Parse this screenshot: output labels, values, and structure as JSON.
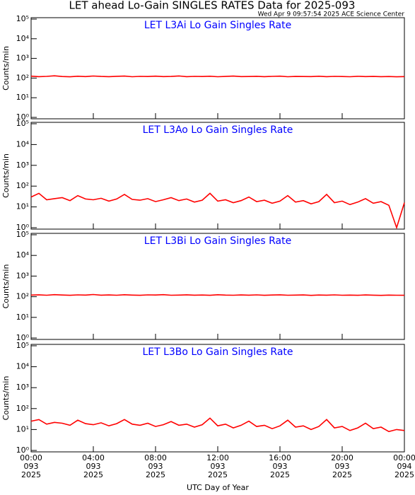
{
  "title": "LET ahead Lo-Gain SINGLES RATES Data for 2025-093",
  "subtitle": "Wed Apr  9 09:57:54 2025 ACE Science Center",
  "chart_data": [
    {
      "type": "line",
      "title": "LET L3Ai Lo Gain Singles Rate",
      "ylabel": "Counts/min",
      "color": "#ff0000",
      "log": true,
      "xlim": [
        0,
        24
      ],
      "xticks": [
        0,
        4,
        8,
        12,
        16,
        20,
        24
      ],
      "ylim": [
        1,
        100000
      ],
      "yticks": [
        {
          "value": 1,
          "label": "10⁰"
        },
        {
          "value": 10,
          "label": "10¹"
        },
        {
          "value": 100,
          "label": "10²"
        },
        {
          "value": 1000,
          "label": "10³"
        },
        {
          "value": 10000,
          "label": "10⁴"
        },
        {
          "value": 100000,
          "label": "10⁵"
        }
      ],
      "x": [
        0,
        0.5,
        1,
        1.5,
        2,
        2.5,
        3,
        3.5,
        4,
        4.5,
        5,
        5.5,
        6,
        6.5,
        7,
        7.5,
        8,
        8.5,
        9,
        9.5,
        10,
        10.5,
        11,
        11.5,
        12,
        12.5,
        13,
        13.5,
        14,
        14.5,
        15,
        15.5,
        16,
        16.5,
        17,
        17.5,
        18,
        18.5,
        19,
        19.5,
        20,
        20.5,
        21,
        21.5,
        22,
        22.5,
        23,
        23.5,
        24
      ],
      "values": [
        125,
        118,
        122,
        130,
        120,
        116,
        124,
        119,
        127,
        121,
        118,
        123,
        126,
        117,
        122,
        120,
        125,
        119,
        121,
        128,
        118,
        122,
        120,
        124,
        117,
        121,
        126,
        119,
        120,
        123,
        118,
        122,
        125,
        117,
        121,
        120,
        119,
        124,
        118,
        122,
        120,
        117,
        123,
        119,
        121,
        118,
        120,
        116,
        119
      ]
    },
    {
      "type": "line",
      "title": "LET L3Ao Lo Gain Singles Rate",
      "ylabel": "Counts/min",
      "color": "#ff0000",
      "log": true,
      "xlim": [
        0,
        24
      ],
      "xticks": [
        0,
        4,
        8,
        12,
        16,
        20,
        24
      ],
      "ylim": [
        1,
        100000
      ],
      "yticks": [
        {
          "value": 1,
          "label": "10⁰"
        },
        {
          "value": 10,
          "label": "10¹"
        },
        {
          "value": 100,
          "label": "10²"
        },
        {
          "value": 1000,
          "label": "10³"
        },
        {
          "value": 10000,
          "label": "10⁴"
        },
        {
          "value": 100000,
          "label": "10⁵"
        }
      ],
      "x": [
        0,
        0.5,
        1,
        1.5,
        2,
        2.5,
        3,
        3.5,
        4,
        4.5,
        5,
        5.5,
        6,
        6.5,
        7,
        7.5,
        8,
        8.5,
        9,
        9.5,
        10,
        10.5,
        11,
        11.5,
        12,
        12.5,
        13,
        13.5,
        14,
        14.5,
        15,
        15.5,
        16,
        16.5,
        17,
        17.5,
        18,
        18.5,
        19,
        19.5,
        20,
        20.5,
        21,
        21.5,
        22,
        22.5,
        23,
        23.5,
        24
      ],
      "values": [
        30,
        45,
        22,
        25,
        28,
        20,
        35,
        24,
        22,
        26,
        19,
        24,
        40,
        23,
        21,
        25,
        18,
        22,
        28,
        20,
        24,
        17,
        21,
        45,
        19,
        22,
        16,
        20,
        30,
        18,
        21,
        15,
        19,
        35,
        17,
        20,
        14,
        18,
        40,
        16,
        19,
        13,
        17,
        25,
        15,
        18,
        12,
        1,
        16
      ]
    },
    {
      "type": "line",
      "title": "LET L3Bi Lo Gain Singles Rate",
      "ylabel": "Counts/min",
      "color": "#ff0000",
      "log": true,
      "xlim": [
        0,
        24
      ],
      "xticks": [
        0,
        4,
        8,
        12,
        16,
        20,
        24
      ],
      "ylim": [
        1,
        100000
      ],
      "yticks": [
        {
          "value": 1,
          "label": "10⁰"
        },
        {
          "value": 10,
          "label": "10¹"
        },
        {
          "value": 100,
          "label": "10²"
        },
        {
          "value": 1000,
          "label": "10³"
        },
        {
          "value": 10000,
          "label": "10⁴"
        },
        {
          "value": 100000,
          "label": "10⁵"
        }
      ],
      "x": [
        0,
        0.5,
        1,
        1.5,
        2,
        2.5,
        3,
        3.5,
        4,
        4.5,
        5,
        5.5,
        6,
        6.5,
        7,
        7.5,
        8,
        8.5,
        9,
        9.5,
        10,
        10.5,
        11,
        11.5,
        12,
        12.5,
        13,
        13.5,
        14,
        14.5,
        15,
        15.5,
        16,
        16.5,
        17,
        17.5,
        18,
        18.5,
        19,
        19.5,
        20,
        20.5,
        21,
        21.5,
        22,
        22.5,
        23,
        23.5,
        24
      ],
      "values": [
        120,
        124,
        118,
        126,
        121,
        117,
        123,
        120,
        128,
        119,
        122,
        118,
        125,
        120,
        117,
        123,
        121,
        126,
        118,
        120,
        124,
        119,
        121,
        117,
        125,
        120,
        118,
        122,
        119,
        123,
        117,
        121,
        124,
        118,
        120,
        122,
        116,
        121,
        119,
        123,
        118,
        120,
        117,
        122,
        119,
        116,
        120,
        118,
        117
      ]
    },
    {
      "type": "line",
      "title": "LET L3Bo Lo Gain Singles Rate",
      "ylabel": "Counts/min",
      "color": "#ff0000",
      "log": true,
      "xlabel": "UTC Day of Year",
      "xlim": [
        0,
        24
      ],
      "xticks": [
        {
          "value": 0,
          "label": [
            "00:00",
            "093",
            "2025"
          ]
        },
        {
          "value": 4,
          "label": [
            "04:00",
            "093",
            "2025"
          ]
        },
        {
          "value": 8,
          "label": [
            "08:00",
            "093",
            "2025"
          ]
        },
        {
          "value": 12,
          "label": [
            "12:00",
            "093",
            "2025"
          ]
        },
        {
          "value": 16,
          "label": [
            "16:00",
            "093",
            "2025"
          ]
        },
        {
          "value": 20,
          "label": [
            "20:00",
            "093",
            "2025"
          ]
        },
        {
          "value": 24,
          "label": [
            "00:00",
            "094",
            "2025"
          ]
        }
      ],
      "ylim": [
        1,
        100000
      ],
      "yticks": [
        {
          "value": 1,
          "label": "10⁰"
        },
        {
          "value": 10,
          "label": "10¹"
        },
        {
          "value": 100,
          "label": "10²"
        },
        {
          "value": 1000,
          "label": "10³"
        },
        {
          "value": 10000,
          "label": "10⁴"
        },
        {
          "value": 100000,
          "label": "10⁵"
        }
      ],
      "x": [
        0,
        0.5,
        1,
        1.5,
        2,
        2.5,
        3,
        3.5,
        4,
        4.5,
        5,
        5.5,
        6,
        6.5,
        7,
        7.5,
        8,
        8.5,
        9,
        9.5,
        10,
        10.5,
        11,
        11.5,
        12,
        12.5,
        13,
        13.5,
        14,
        14.5,
        15,
        15.5,
        16,
        16.5,
        17,
        17.5,
        18,
        18.5,
        19,
        19.5,
        20,
        20.5,
        21,
        21.5,
        22,
        22.5,
        23,
        23.5,
        24
      ],
      "values": [
        25,
        30,
        18,
        22,
        20,
        16,
        28,
        19,
        17,
        21,
        15,
        19,
        30,
        18,
        16,
        20,
        14,
        17,
        24,
        16,
        18,
        13,
        17,
        35,
        15,
        18,
        12,
        16,
        25,
        14,
        16,
        11,
        15,
        28,
        13,
        15,
        10,
        14,
        30,
        12,
        14,
        9,
        12,
        20,
        11,
        13,
        8,
        10,
        9
      ]
    }
  ]
}
